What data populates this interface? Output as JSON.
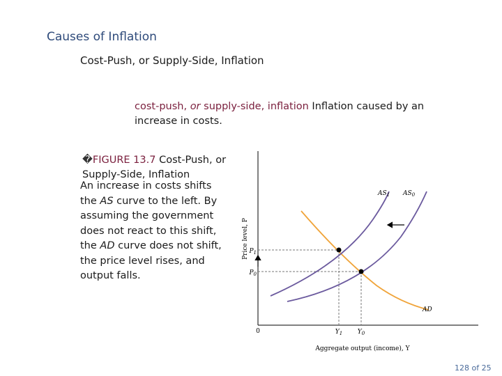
{
  "slide": {
    "title": "Causes of Inflation",
    "subtitle": "Cost-Push, or Supply-Side, Inflation",
    "page": "128 of 25"
  },
  "definition": {
    "term_part1": "cost-push, ",
    "term_part2": "or",
    "term_part3": " supply-side, inflation",
    "text": "  Inflation caused by an increase in costs."
  },
  "figure": {
    "marker": "�",
    "label": "FIGURE 13.7",
    "caption": "  Cost-Push, or Supply-Side, Inflation",
    "desc_1": "An increase in costs shifts the ",
    "desc_2": "AS",
    "desc_3": " curve to the left. By assuming the government does not react to this shift, the ",
    "desc_4": "AD",
    "desc_5": " curve does not shift, the price level rises, and output falls."
  },
  "chart_data": {
    "type": "line",
    "xlabel": "Aggregate output (income), Y",
    "ylabel": "Price level, P",
    "origin_label": "0",
    "x_ticks": [
      "Y1",
      "Y0"
    ],
    "y_ticks": [
      "P1",
      "P0"
    ],
    "series": [
      {
        "name": "AS1",
        "color": "#6b5a9e",
        "shape": "upward-sloping, shifted left"
      },
      {
        "name": "AS0",
        "color": "#6b5a9e",
        "shape": "upward-sloping, original"
      },
      {
        "name": "AD",
        "color": "#f0a43a",
        "shape": "downward-sloping, unchanged"
      }
    ],
    "points": [
      {
        "label": "initial equilibrium",
        "at": [
          "Y0",
          "P0"
        ]
      },
      {
        "label": "new equilibrium",
        "at": [
          "Y1",
          "P1"
        ]
      }
    ],
    "arrows": [
      "leftward shift of AS",
      "upward rise in price level"
    ]
  }
}
